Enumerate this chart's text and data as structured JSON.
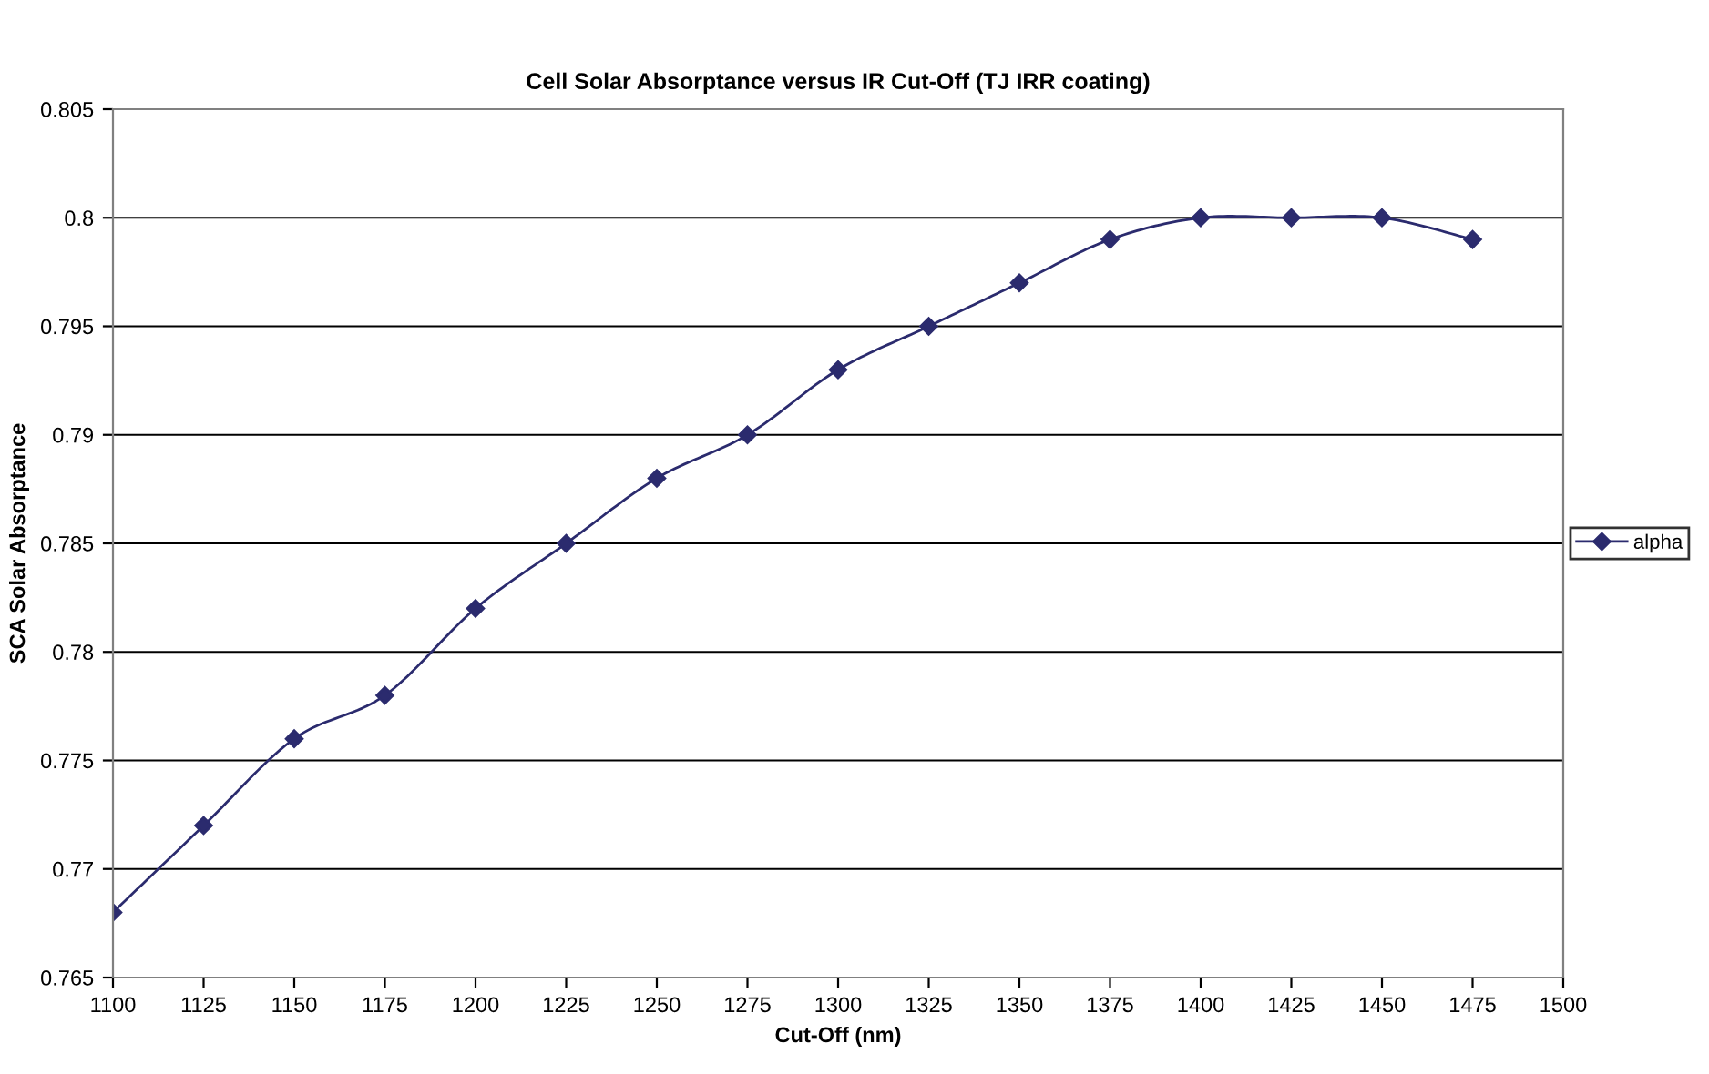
{
  "chart_data": {
    "type": "line",
    "title": "Cell Solar Absorptance versus IR Cut-Off (TJ IRR coating)",
    "xlabel": "Cut-Off (nm)",
    "ylabel": "SCA Solar Absorptance",
    "x": [
      1100,
      1125,
      1150,
      1175,
      1200,
      1225,
      1250,
      1275,
      1300,
      1325,
      1350,
      1375,
      1400,
      1425,
      1450,
      1475
    ],
    "series": [
      {
        "name": "alpha",
        "color": "#2b2b6e",
        "values": [
          0.768,
          0.772,
          0.776,
          0.778,
          0.782,
          0.785,
          0.788,
          0.79,
          0.793,
          0.795,
          0.797,
          0.799,
          0.8,
          0.8,
          0.8,
          0.799
        ]
      }
    ],
    "xlim": [
      1100,
      1500
    ],
    "xticks": [
      1100,
      1125,
      1150,
      1175,
      1200,
      1225,
      1250,
      1275,
      1300,
      1325,
      1350,
      1375,
      1400,
      1425,
      1450,
      1475,
      1500
    ],
    "ylim": [
      0.765,
      0.805
    ],
    "yticks": [
      0.765,
      0.77,
      0.775,
      0.78,
      0.785,
      0.79,
      0.795,
      0.8,
      0.805
    ],
    "grid": "y",
    "legend": "right",
    "marker": "diamond",
    "line_style": "solid"
  }
}
